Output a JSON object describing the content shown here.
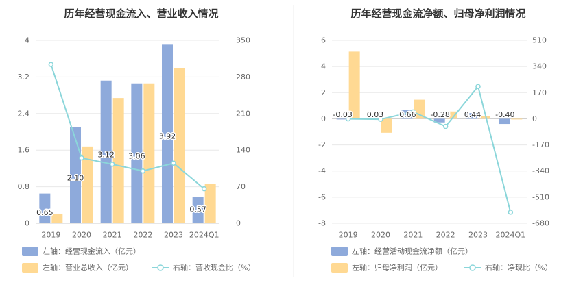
{
  "chart_data": [
    {
      "type": "bar",
      "title": "历年经营现金流入、营业收入情况",
      "categories": [
        "2019",
        "2020",
        "2021",
        "2022",
        "2023",
        "2024Q1"
      ],
      "left_axis": {
        "min": 0,
        "max": 4,
        "ticks": [
          "0",
          "0.8",
          "1.6",
          "2.4",
          "3.2",
          "4"
        ]
      },
      "right_axis": {
        "min": 0,
        "max": 350,
        "ticks": [
          "0",
          "70",
          "140",
          "210",
          "280",
          "350"
        ]
      },
      "series": [
        {
          "name": "左轴：经营现金流入（亿元）",
          "kind": "bar",
          "axis": "left",
          "color": "#8eaadb",
          "values": [
            0.65,
            2.1,
            3.12,
            3.06,
            3.92,
            0.57
          ],
          "labels": [
            "0.65",
            "2.10",
            "3.12",
            "3.06",
            "3.92",
            "0.57"
          ]
        },
        {
          "name": "左轴：营业总收入（亿元）",
          "kind": "bar",
          "axis": "left",
          "color": "#ffd993",
          "values": [
            0.21,
            1.68,
            2.74,
            3.06,
            3.4,
            0.86
          ]
        },
        {
          "name": "右轴：营收现金比（%）",
          "kind": "line",
          "axis": "right",
          "color": "#8bd6da",
          "values": [
            304,
            125,
            113,
            100,
            115,
            66
          ]
        }
      ],
      "legend": {
        "position": "bottom"
      }
    },
    {
      "type": "bar",
      "title": "历年经营现金流净额、归母净利润情况",
      "categories": [
        "2019",
        "2020",
        "2021",
        "2022",
        "2023",
        "2024Q1"
      ],
      "left_axis": {
        "min": -8,
        "max": 6,
        "ticks": [
          "-8",
          "-6",
          "-4",
          "-2",
          "0",
          "2",
          "4",
          "6"
        ]
      },
      "right_axis": {
        "min": -680,
        "max": 510,
        "ticks": [
          "-680",
          "-510",
          "-340",
          "-170",
          "0",
          "170",
          "340",
          "510"
        ]
      },
      "series": [
        {
          "name": "左轴：经营活动现金流净额（亿元）",
          "kind": "bar",
          "axis": "left",
          "color": "#8eaadb",
          "values": [
            -0.03,
            0.03,
            0.66,
            -0.28,
            0.44,
            -0.4
          ],
          "labels": [
            "-0.03",
            "0.03",
            "0.66",
            "-0.28",
            "0.44",
            "-0.40"
          ]
        },
        {
          "name": "左轴：归母净利润（亿元）",
          "kind": "bar",
          "axis": "left",
          "color": "#ffd993",
          "values": [
            5.14,
            -1.07,
            1.46,
            0.56,
            0.18,
            -0.02
          ]
        },
        {
          "name": "右轴：净现比（%）",
          "kind": "line",
          "axis": "right",
          "color": "#8bd6da",
          "values": [
            -1,
            -3,
            45,
            -50,
            210,
            -608
          ]
        }
      ],
      "legend": {
        "position": "bottom"
      }
    }
  ]
}
